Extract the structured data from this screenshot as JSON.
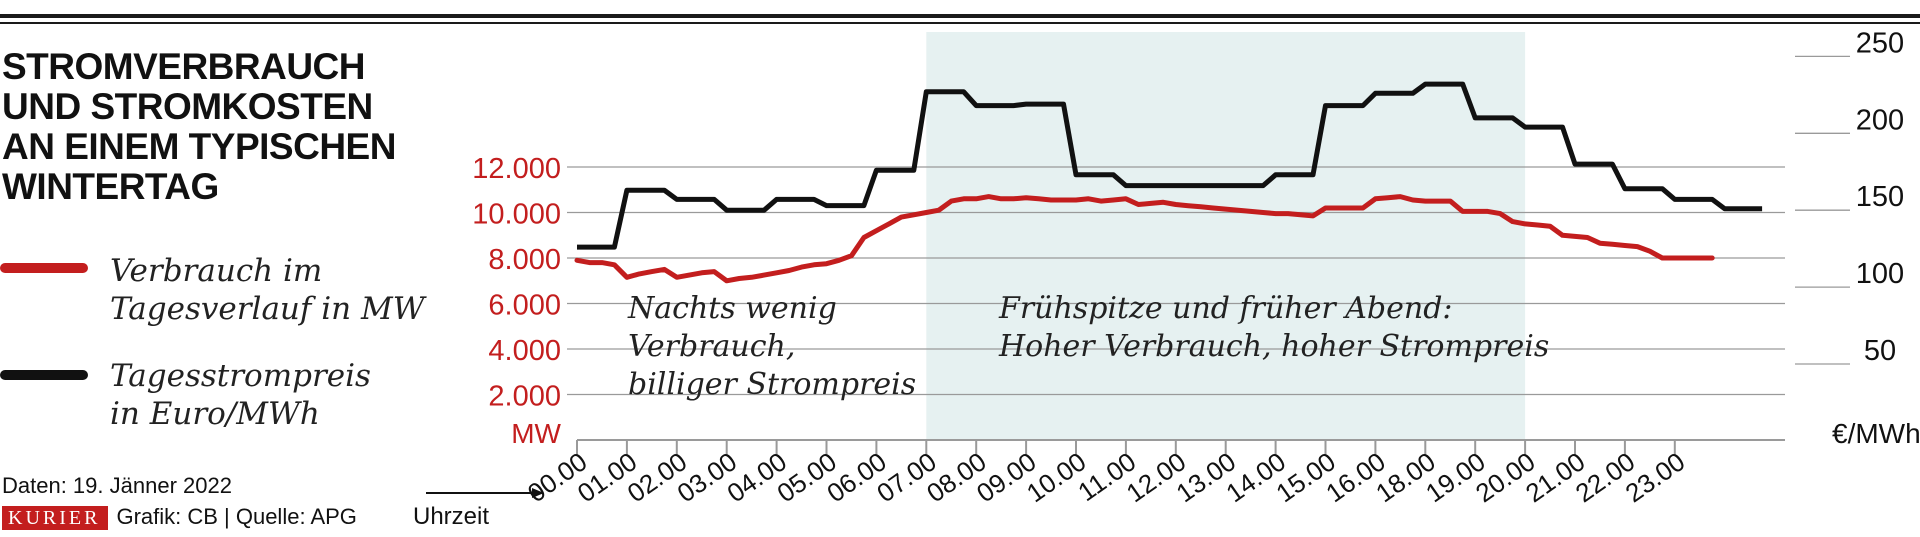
{
  "title_lines": [
    "STROMVERBRAUCH",
    "UND STROMKOSTEN",
    "AN EINEM TYPISCHEN",
    "WINTERTAG"
  ],
  "legend": [
    {
      "line1": "Verbrauch im",
      "line2": "Tagesverlauf in MW",
      "color": "#c31e1e"
    },
    {
      "line1": "Tagesstrompreis",
      "line2": "in Euro/MWh",
      "color": "#111111"
    }
  ],
  "credits": {
    "data_line": "Daten: 19. Jänner 2022",
    "brand": "KURIER",
    "grafik": "Grafik: CB | Quelle: APG"
  },
  "annotations": {
    "night_line1": "Nachts wenig",
    "night_line2": "Verbrauch,",
    "night_line3": "billiger Strompreis",
    "peak_line1": "Frühspitze und früher Abend:",
    "peak_line2": "Hoher Verbrauch, hoher Strompreis"
  },
  "chart_data": {
    "type": "line",
    "xlabel": "Uhrzeit",
    "categories": [
      "00.00",
      "01.00",
      "02.00",
      "03.00",
      "04.00",
      "05.00",
      "06.00",
      "07.00",
      "08.00",
      "09.00",
      "10.00",
      "11.00",
      "12.00",
      "13.00",
      "14.00",
      "15.00",
      "16.00",
      "18.00",
      "19.00",
      "20.00",
      "21.00",
      "22.00",
      "23.00"
    ],
    "highlight_range": [
      "07.00",
      "20.00"
    ],
    "y_left": {
      "label": "MW",
      "ticks": [
        "2.000",
        "4.000",
        "6.000",
        "8.000",
        "10.000",
        "12.000"
      ],
      "ylim": [
        0,
        12500
      ],
      "color": "#c31e1e"
    },
    "y_right": {
      "label": "€/MWh",
      "ticks": [
        "50",
        "100",
        "150",
        "200",
        "250"
      ],
      "ylim": [
        0,
        260
      ]
    },
    "series": [
      {
        "name": "Verbrauch im Tagesverlauf in MW",
        "axis": "left",
        "color": "#c31e1e",
        "x": [
          0,
          0.25,
          0.5,
          0.75,
          1,
          1.25,
          1.5,
          1.75,
          2,
          2.25,
          2.5,
          2.75,
          3,
          3.25,
          3.5,
          3.75,
          4,
          4.25,
          4.5,
          4.75,
          5,
          5.25,
          5.5,
          5.75,
          6,
          6.25,
          6.5,
          6.75,
          7,
          7.25,
          7.5,
          7.75,
          8,
          8.25,
          8.5,
          8.75,
          9,
          9.25,
          9.5,
          9.75,
          10,
          10.25,
          10.5,
          10.75,
          11,
          11.25,
          11.5,
          11.75,
          12,
          12.25,
          12.5,
          12.75,
          13,
          13.25,
          13.5,
          13.75,
          14,
          14.25,
          14.5,
          14.75,
          15,
          15.25,
          15.5,
          15.75,
          16,
          16.25,
          16.5,
          16.75,
          17,
          17.25,
          17.5,
          17.75,
          18,
          18.25,
          18.5,
          18.75,
          19,
          19.25,
          19.5,
          19.75,
          20,
          20.25,
          20.5,
          20.75,
          21,
          21.25,
          21.5,
          21.75,
          22,
          22.25,
          22.5,
          22.75
        ],
        "values": [
          7900,
          7800,
          7800,
          7700,
          7150,
          7300,
          7400,
          7500,
          7150,
          7250,
          7350,
          7400,
          7000,
          7100,
          7150,
          7250,
          7350,
          7450,
          7600,
          7700,
          7750,
          7900,
          8100,
          8900,
          9200,
          9500,
          9800,
          9900,
          10000,
          10100,
          10500,
          10600,
          10600,
          10700,
          10600,
          10600,
          10650,
          10600,
          10550,
          10550,
          10550,
          10600,
          10500,
          10550,
          10600,
          10350,
          10400,
          10450,
          10350,
          10300,
          10250,
          10200,
          10150,
          10100,
          10050,
          10000,
          9950,
          9950,
          9900,
          9850,
          10200,
          10200,
          10200,
          10200,
          10600,
          10650,
          10700,
          10550,
          10500,
          10500,
          10500,
          10050,
          10050,
          10050,
          9950,
          9600,
          9500,
          9450,
          9400,
          9000,
          8950,
          8900,
          8650,
          8600,
          8550,
          8500,
          8300,
          8000,
          8000,
          8000,
          8000,
          8000
        ]
      },
      {
        "name": "Tagesstrompreis in Euro/MWh",
        "axis": "right",
        "color": "#111111",
        "step_x": [
          0,
          0.75,
          1,
          1.75,
          2,
          2.75,
          3,
          3.75,
          4,
          4.75,
          5,
          5.75,
          6,
          6.75,
          7,
          7.75,
          8,
          8.75,
          9,
          9.75,
          10,
          10.75,
          11,
          11.75,
          12,
          12.75,
          13,
          13.75,
          14,
          14.75,
          15,
          15.75,
          16,
          16.75,
          17,
          17.75,
          18,
          18.75,
          19,
          19.75,
          20,
          20.75,
          21,
          21.75,
          22,
          22.75,
          23,
          23.75
        ],
        "step_y": [
          126,
          126,
          163,
          163,
          157,
          157,
          150,
          150,
          157,
          157,
          153,
          153,
          176,
          176,
          227,
          227,
          218,
          218,
          219,
          219,
          173,
          173,
          166,
          166,
          166,
          166,
          166,
          166,
          173,
          173,
          218,
          218,
          226,
          226,
          232,
          232,
          210,
          210,
          204,
          204,
          180,
          180,
          164,
          164,
          157,
          157,
          151,
          151
        ]
      }
    ],
    "legend_position": "left"
  }
}
